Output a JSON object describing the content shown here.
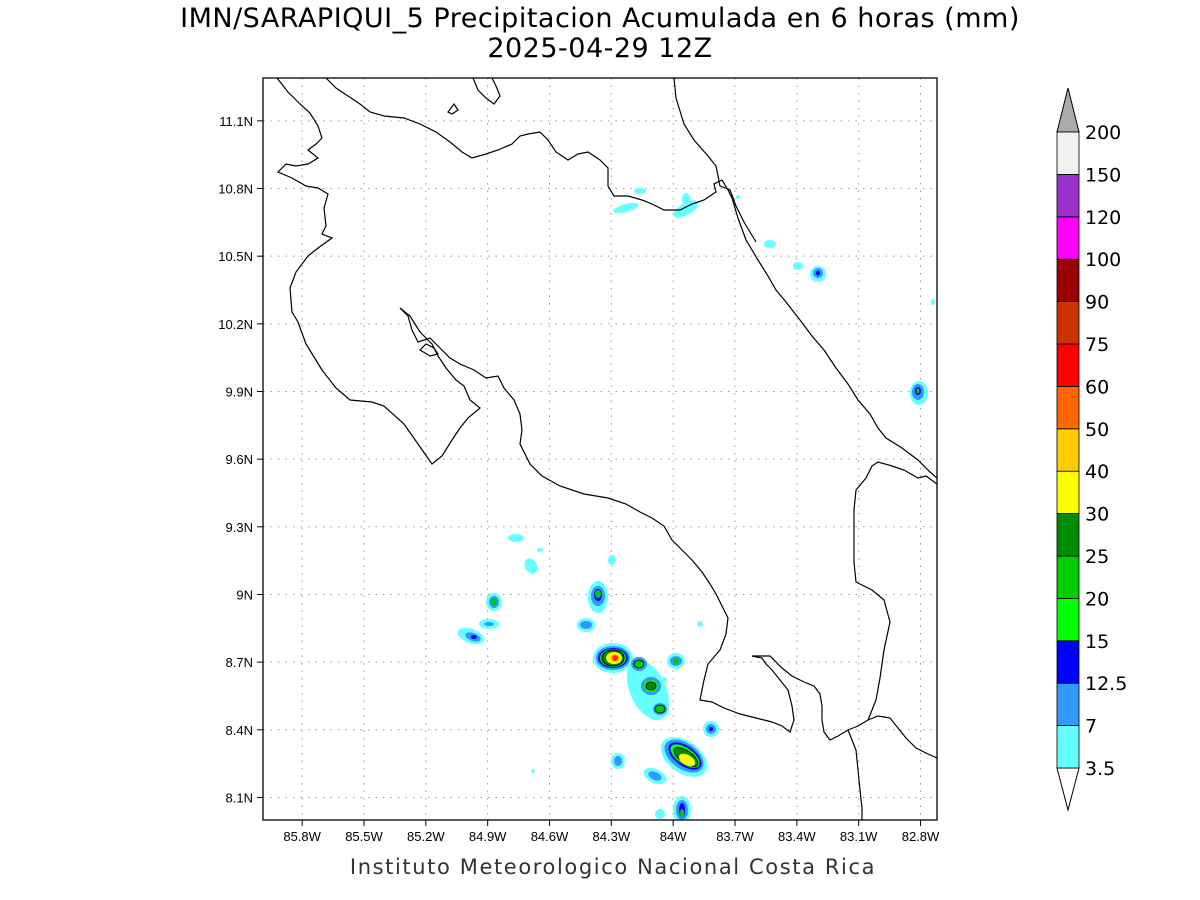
{
  "title": "IMN/SARAPIQUI_5 Precipitacion Acumulada en 6 horas (mm)",
  "subtitle": "2025-04-29 12Z",
  "credit": "Instituto Meteorologico Nacional Costa Rica",
  "map": {
    "lon_range": [
      -85.99,
      -82.72
    ],
    "lat_range": [
      8.0,
      11.29
    ],
    "lon_ticks": [
      {
        "value": -85.8,
        "label": "85.8W"
      },
      {
        "value": -85.5,
        "label": "85.5W"
      },
      {
        "value": -85.2,
        "label": "85.2W"
      },
      {
        "value": -84.9,
        "label": "84.9W"
      },
      {
        "value": -84.6,
        "label": "84.6W"
      },
      {
        "value": -84.3,
        "label": "84.3W"
      },
      {
        "value": -84.0,
        "label": "84W"
      },
      {
        "value": -83.7,
        "label": "83.7W"
      },
      {
        "value": -83.4,
        "label": "83.4W"
      },
      {
        "value": -83.1,
        "label": "83.1W"
      },
      {
        "value": -82.8,
        "label": "82.8W"
      }
    ],
    "lat_ticks": [
      {
        "value": 11.1,
        "label": "11.1N"
      },
      {
        "value": 10.8,
        "label": "10.8N"
      },
      {
        "value": 10.5,
        "label": "10.5N"
      },
      {
        "value": 10.2,
        "label": "10.2N"
      },
      {
        "value": 9.9,
        "label": "9.9N"
      },
      {
        "value": 9.6,
        "label": "9.6N"
      },
      {
        "value": 9.3,
        "label": "9.3N"
      },
      {
        "value": 9.0,
        "label": "9N"
      },
      {
        "value": 8.7,
        "label": "8.7N"
      },
      {
        "value": 8.4,
        "label": "8.4N"
      },
      {
        "value": 8.1,
        "label": "8.1N"
      }
    ],
    "grid": "dotted"
  },
  "colorbar": {
    "levels": [
      "3.5",
      "7",
      "12.5",
      "15",
      "20",
      "25",
      "30",
      "40",
      "50",
      "60",
      "75",
      "90",
      "100",
      "120",
      "150",
      "200"
    ],
    "colors": [
      "#66ffff",
      "#3399ff",
      "#0000ff",
      "#00ff00",
      "#00cc00",
      "#008c00",
      "#ffff00",
      "#ffcc00",
      "#ff6600",
      "#ff0000",
      "#cc3300",
      "#990000",
      "#ff00ff",
      "#9933cc",
      "#f0f0f0"
    ],
    "over_color": "#aaaaaa",
    "under_color": "#ffffff"
  }
}
